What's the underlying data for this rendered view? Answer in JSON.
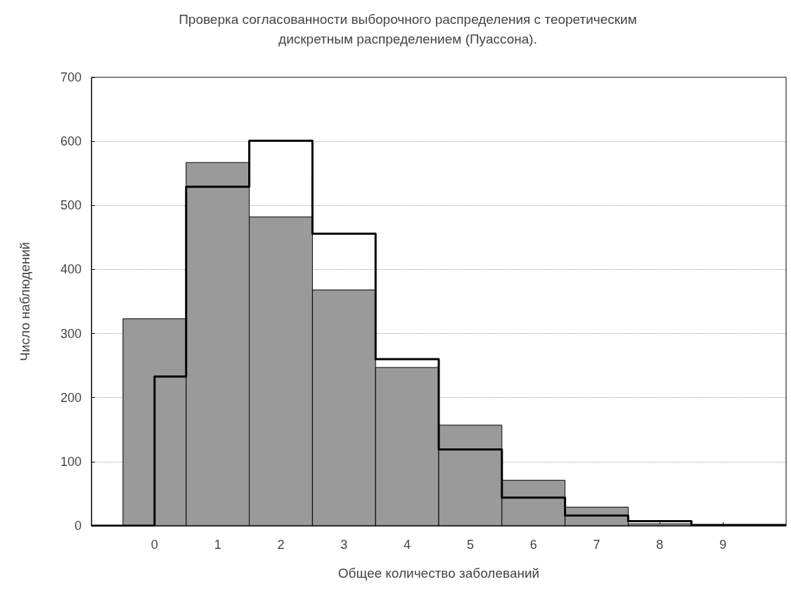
{
  "chart_data": {
    "type": "histogram",
    "title": "Проверка согласованности выборочного распределения с теоретическим\nдискретным распределением (Пуассона).",
    "xlabel": "Общее количество заболеваний",
    "ylabel": "Число наблюдений",
    "bins": [
      -0.5,
      0.5,
      1.5,
      2.5,
      3.5,
      4.5,
      5.5,
      6.5,
      7.5,
      8.5
    ],
    "series": [
      {
        "color": "#9a9a9a",
        "values": [
          323,
          567,
          482,
          368,
          247,
          157,
          71,
          29,
          3
        ]
      },
      {
        "type": "step",
        "color": "#000000",
        "x": [
          -1,
          0,
          0.5,
          1.5,
          2.5,
          3.5,
          4.5,
          5.5,
          6.5,
          7.5,
          8.5,
          10
        ],
        "values": [
          0,
          233,
          529,
          601,
          456,
          260,
          119,
          44,
          16,
          7,
          1,
          1
        ]
      }
    ],
    "xlim": [
      -1,
      10
    ],
    "xticks": [
      0,
      1,
      2,
      3,
      4,
      5,
      6,
      7,
      8,
      9
    ],
    "ylim": [
      0,
      700
    ],
    "yticks": [
      0,
      100,
      200,
      300,
      400,
      500,
      600,
      700
    ],
    "grid": "y"
  }
}
